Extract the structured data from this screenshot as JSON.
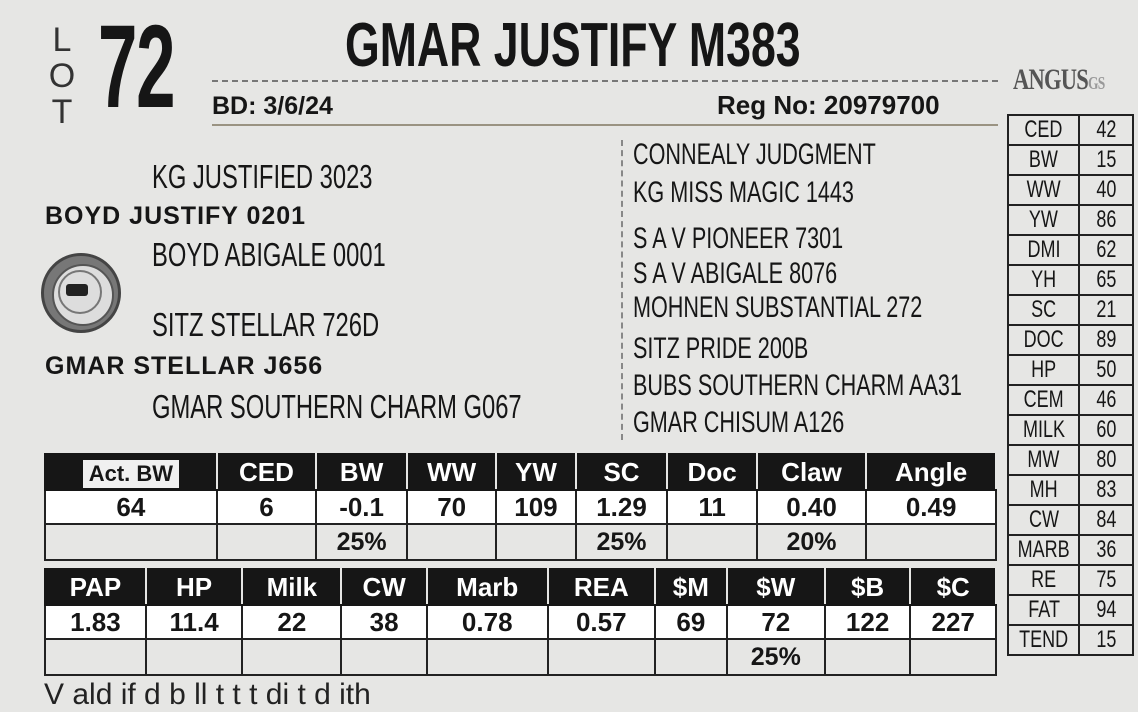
{
  "lot": {
    "letters": [
      "L",
      "O",
      "T"
    ],
    "number": "72"
  },
  "animal": {
    "name": "GMAR JUSTIFY M383",
    "bd_label": "BD:",
    "bd": "3/6/24",
    "reg_label": "Reg No:",
    "reg": "20979700"
  },
  "logo": {
    "word": "ANGUS",
    "suffix": "GS"
  },
  "pedigree": {
    "sire_sire": "KG JUSTIFIED 3023",
    "sire": "BOYD JUSTIFY 0201",
    "sire_dam": "BOYD ABIGALE 0001",
    "dam_sire": "SITZ STELLAR 726D",
    "dam": "GMAR STELLAR J656",
    "dam_dam": "GMAR SOUTHERN CHARM G067",
    "right": [
      "CONNEALY JUDGMENT",
      "KG MISS MAGIC 1443",
      "S A V PIONEER 7301",
      "S A V ABIGALE 8076",
      "MOHNEN SUBSTANTIAL 272",
      "SITZ PRIDE 200B",
      "BUBS SOUTHERN CHARM AA31",
      "GMAR CHISUM A126"
    ]
  },
  "side_table": [
    {
      "k": "CED",
      "v": "42"
    },
    {
      "k": "BW",
      "v": "15"
    },
    {
      "k": "WW",
      "v": "40"
    },
    {
      "k": "YW",
      "v": "86"
    },
    {
      "k": "DMI",
      "v": "62"
    },
    {
      "k": "YH",
      "v": "65"
    },
    {
      "k": "SC",
      "v": "21"
    },
    {
      "k": "DOC",
      "v": "89"
    },
    {
      "k": "HP",
      "v": "50"
    },
    {
      "k": "CEM",
      "v": "46"
    },
    {
      "k": "MILK",
      "v": "60"
    },
    {
      "k": "MW",
      "v": "80"
    },
    {
      "k": "MH",
      "v": "83"
    },
    {
      "k": "CW",
      "v": "84"
    },
    {
      "k": "MARB",
      "v": "36"
    },
    {
      "k": "RE",
      "v": "75"
    },
    {
      "k": "FAT",
      "v": "94"
    },
    {
      "k": "TEND",
      "v": "15"
    }
  ],
  "epd1": {
    "headers": [
      "Act. BW",
      "CED",
      "BW",
      "WW",
      "YW",
      "SC",
      "Doc",
      "Claw",
      "Angle"
    ],
    "values": [
      "64",
      "6",
      "-0.1",
      "70",
      "109",
      "1.29",
      "11",
      "0.40",
      "0.49"
    ],
    "pct": [
      "",
      "",
      "25%",
      "",
      "",
      "25%",
      "",
      "20%",
      ""
    ]
  },
  "epd2": {
    "headers": [
      "PAP",
      "HP",
      "Milk",
      "CW",
      "Marb",
      "REA",
      "$M",
      "$W",
      "$B",
      "$C"
    ],
    "values": [
      "1.83",
      "11.4",
      "22",
      "38",
      "0.78",
      "0.57",
      "69",
      "72",
      "122",
      "227"
    ],
    "pct": [
      "",
      "",
      "",
      "",
      "",
      "",
      "",
      "25%",
      "",
      ""
    ]
  },
  "footer_cut": "V                 ald  if   d  b  ll                           t      t t     di              t  d  ith"
}
